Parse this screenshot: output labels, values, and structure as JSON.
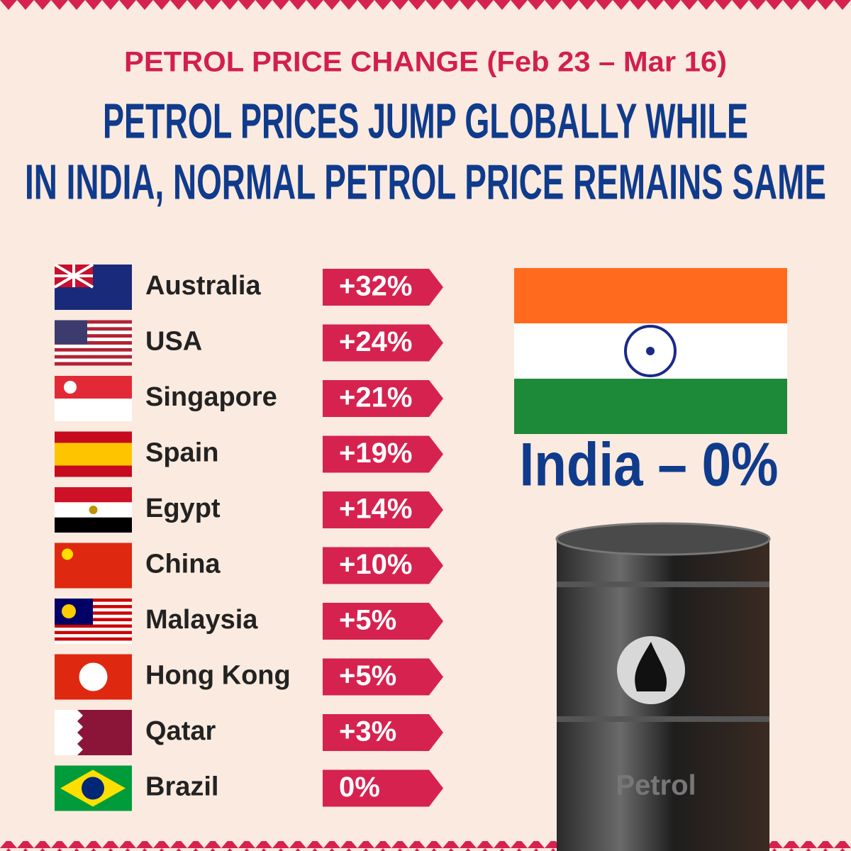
{
  "header": {
    "subtitle": "PETROL PRICE CHANGE (Feb 23 – Mar 16)",
    "title_lines": [
      "PETROL PRICES JUMP GLOBALLY WHILE",
      "IN INDIA, NORMAL PETROL PRICE REMAINS SAME"
    ]
  },
  "countries": [
    {
      "name": "Australia",
      "change": "+32%"
    },
    {
      "name": "USA",
      "change": "+24%"
    },
    {
      "name": "Singapore",
      "change": "+21%"
    },
    {
      "name": "Spain",
      "change": "+19%"
    },
    {
      "name": "Egypt",
      "change": "+14%"
    },
    {
      "name": "China",
      "change": "+10%"
    },
    {
      "name": "Malaysia",
      "change": "+5%"
    },
    {
      "name": "Hong Kong",
      "change": "+5%"
    },
    {
      "name": "Qatar",
      "change": "+3%"
    },
    {
      "name": "Brazil",
      "change": "0%"
    }
  ],
  "india": {
    "label": "India – 0%"
  },
  "barrel": {
    "label": "Petrol"
  }
}
